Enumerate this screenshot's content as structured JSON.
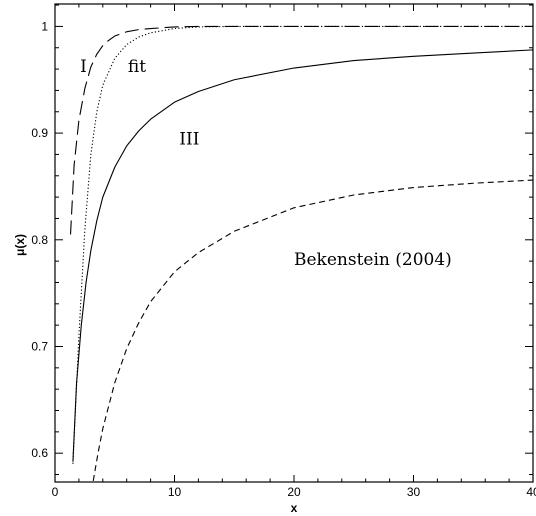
{
  "chart_data": {
    "type": "line",
    "xlabel": "x",
    "ylabel": "μ(x)",
    "xlim": [
      0,
      40
    ],
    "ylim": [
      0.573,
      1.021
    ],
    "x_ticks": [
      0,
      10,
      20,
      30,
      40
    ],
    "y_ticks": [
      0.6,
      0.7,
      0.8,
      0.9,
      1.0
    ],
    "x_tick_labels": [
      "0",
      "10",
      "20",
      "30",
      "40"
    ],
    "y_tick_labels": [
      "0.6",
      "0.7",
      "0.8",
      "0.9",
      "1"
    ],
    "grid": false,
    "series": [
      {
        "name": "I",
        "style": "long-dash",
        "x": [
          1.3,
          1.6,
          2.0,
          2.5,
          3.0,
          3.5,
          4.0,
          4.5,
          5.0,
          6.0,
          7.0,
          8.0,
          10.0,
          12.0,
          15.0,
          20.0,
          30.0,
          40.0
        ],
        "y": [
          0.805,
          0.87,
          0.912,
          0.942,
          0.962,
          0.974,
          0.982,
          0.987,
          0.991,
          0.995,
          0.997,
          0.998,
          0.9995,
          1.0,
          1.0,
          1.0,
          1.0,
          1.0
        ]
      },
      {
        "name": "fit",
        "style": "dotted",
        "x": [
          1.5,
          2.0,
          2.5,
          3.0,
          3.5,
          4.0,
          5.0,
          6.0,
          7.0,
          8.0,
          9.0,
          10.0,
          12.0,
          15.0,
          20.0,
          30.0,
          40.0
        ],
        "y": [
          0.59,
          0.71,
          0.81,
          0.88,
          0.92,
          0.945,
          0.97,
          0.983,
          0.99,
          0.994,
          0.996,
          0.998,
          0.9995,
          1.0,
          1.0,
          1.0,
          1.0
        ]
      },
      {
        "name": "III",
        "style": "solid",
        "x": [
          1.5,
          1.8,
          2.2,
          2.6,
          3.0,
          3.5,
          4.0,
          5.0,
          6.0,
          7.0,
          8.0,
          10.0,
          12.0,
          15.0,
          20.0,
          25.0,
          30.0,
          35.0,
          40.0
        ],
        "y": [
          0.592,
          0.665,
          0.72,
          0.76,
          0.79,
          0.818,
          0.84,
          0.868,
          0.888,
          0.902,
          0.913,
          0.929,
          0.939,
          0.95,
          0.961,
          0.968,
          0.972,
          0.975,
          0.978
        ]
      },
      {
        "name": "Bekenstein (2004)",
        "style": "short-dash",
        "x": [
          3.2,
          3.6,
          4.0,
          5.0,
          6.0,
          7.0,
          8.0,
          10.0,
          12.0,
          15.0,
          20.0,
          25.0,
          30.0,
          35.0,
          40.0
        ],
        "y": [
          0.574,
          0.6,
          0.623,
          0.666,
          0.698,
          0.722,
          0.742,
          0.77,
          0.788,
          0.808,
          0.83,
          0.842,
          0.849,
          0.853,
          0.856
        ]
      }
    ],
    "annotations": [
      {
        "text": "I",
        "x": 2.1,
        "y": 0.963
      },
      {
        "text": "fit",
        "x": 6.1,
        "y": 0.963
      },
      {
        "text": "III",
        "x": 10.4,
        "y": 0.895
      },
      {
        "text": "Bekenstein (2004)",
        "x": 20.0,
        "y": 0.782
      }
    ]
  }
}
